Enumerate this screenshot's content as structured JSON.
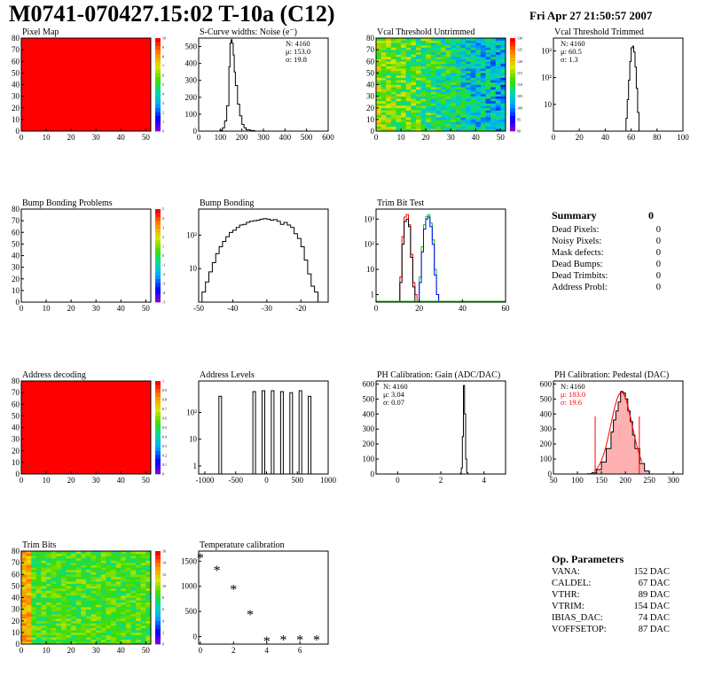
{
  "header": {
    "title": "M0741-070427.15:02 T-10a (C12)",
    "date": "Fri Apr 27 21:50:57 2007"
  },
  "colors": {
    "red_fill": "#ff0000",
    "line": "#000000",
    "trim_red": "#ff0000",
    "trim_green": "#00cc00",
    "trim_blue": "#0000ff",
    "pedestal_fill": "#ffb0b0",
    "pedestal_fit": "#ff0000"
  },
  "palette_name": "rainbow",
  "chart_data": [
    {
      "id": "pixel-map",
      "type": "heatmap",
      "title": "Pixel Map",
      "xlim": [
        0,
        52
      ],
      "ylim": [
        0,
        80
      ],
      "xticks": [
        "0",
        "10",
        "20",
        "30",
        "40",
        "50"
      ],
      "yticks": [
        "0",
        "10",
        "20",
        "30",
        "40",
        "50",
        "60",
        "70",
        "80"
      ],
      "fill": "uniform-max",
      "zticks": [
        "0",
        "1",
        "2",
        "3",
        "4",
        "5",
        "6",
        "7",
        "8",
        "9",
        "10"
      ]
    },
    {
      "id": "scurve",
      "type": "line",
      "title": "S-Curve widths: Noise (e⁻)",
      "xlim": [
        0,
        600
      ],
      "ylim": [
        0,
        550
      ],
      "xticks": [
        "0",
        "100",
        "200",
        "300",
        "400",
        "500",
        "600"
      ],
      "yticks": [
        "0",
        "100",
        "200",
        "300",
        "400",
        "500"
      ],
      "stats": [
        "N: 4160",
        "μ: 153.0",
        "σ: 19.8"
      ],
      "x": [
        90,
        100,
        110,
        120,
        130,
        140,
        145,
        150,
        155,
        160,
        165,
        170,
        180,
        190,
        200,
        210,
        220,
        240,
        260
      ],
      "y": [
        0,
        5,
        20,
        60,
        150,
        380,
        520,
        540,
        520,
        450,
        350,
        270,
        160,
        90,
        40,
        20,
        8,
        3,
        0
      ]
    },
    {
      "id": "vcal-untrimmed",
      "type": "heatmap",
      "title": "Vcal Threshold Untrimmed",
      "xlim": [
        0,
        52
      ],
      "ylim": [
        0,
        80
      ],
      "xticks": [
        "0",
        "10",
        "20",
        "30",
        "40",
        "50"
      ],
      "yticks": [
        "0",
        "10",
        "20",
        "30",
        "40",
        "50",
        "60",
        "70",
        "80"
      ],
      "fill": "noisy-gradient",
      "zticks": [
        "90",
        "95",
        "100",
        "105",
        "110",
        "115",
        "120",
        "125",
        "130"
      ]
    },
    {
      "id": "vcal-trimmed",
      "type": "line",
      "title": "Vcal Threshold Trimmed",
      "xlim": [
        0,
        100
      ],
      "ylog": true,
      "ylim": [
        1,
        3000
      ],
      "xticks": [
        "0",
        "20",
        "40",
        "60",
        "80",
        "100"
      ],
      "yticks": [
        "10",
        "10²",
        "10³"
      ],
      "stats": [
        "N: 4160",
        "μ: 60.5",
        "σ: 1.3"
      ],
      "x": [
        55,
        56,
        57,
        58,
        59,
        60,
        61,
        62,
        63,
        64,
        65,
        66
      ],
      "y": [
        1,
        3,
        15,
        80,
        400,
        1300,
        1500,
        900,
        250,
        40,
        5,
        1
      ]
    },
    {
      "id": "bump-problems",
      "type": "heatmap",
      "title": "Bump Bonding Problems",
      "xlim": [
        0,
        52
      ],
      "ylim": [
        0,
        80
      ],
      "xticks": [
        "0",
        "10",
        "20",
        "30",
        "40",
        "50"
      ],
      "yticks": [
        "0",
        "10",
        "20",
        "30",
        "40",
        "50",
        "60",
        "70",
        "80"
      ],
      "fill": "empty",
      "zticks": [
        "-5",
        "-4",
        "-3",
        "-2",
        "-1",
        "0",
        "1",
        "2",
        "3",
        "4",
        "5"
      ]
    },
    {
      "id": "bump-bonding",
      "type": "line",
      "title": "Bump Bonding",
      "xlim": [
        -50,
        -12
      ],
      "ylog": true,
      "ylim": [
        1,
        600
      ],
      "xticks": [
        "-50",
        "-40",
        "-30",
        "-20"
      ],
      "yticks": [
        "10",
        "10²"
      ],
      "x": [
        -50,
        -49,
        -48,
        -47,
        -46,
        -45,
        -44,
        -43,
        -42,
        -41,
        -40,
        -39,
        -38,
        -37,
        -36,
        -35,
        -34,
        -33,
        -32,
        -31,
        -30,
        -29,
        -28,
        -27,
        -26,
        -25,
        -24,
        -23,
        -22,
        -21,
        -20,
        -19,
        -18,
        -17,
        -16,
        -15
      ],
      "y": [
        1,
        2,
        4,
        8,
        15,
        28,
        45,
        65,
        90,
        120,
        140,
        170,
        200,
        210,
        240,
        260,
        270,
        280,
        300,
        310,
        300,
        280,
        290,
        260,
        210,
        240,
        200,
        170,
        110,
        80,
        45,
        18,
        7,
        3,
        2,
        1
      ]
    },
    {
      "id": "trim-bit-test",
      "type": "line",
      "title": "Trim Bit Test",
      "xlim": [
        0,
        60
      ],
      "ylog": true,
      "ylim": [
        0.5,
        2500
      ],
      "xticks": [
        "0",
        "20",
        "40",
        "60"
      ],
      "yticks": [
        "1",
        "10",
        "10²",
        "10³"
      ],
      "series": [
        {
          "color": "red",
          "x": [
            10,
            11,
            12,
            13,
            14,
            15,
            16,
            17,
            18,
            19
          ],
          "y": [
            0.5,
            5,
            200,
            1200,
            1500,
            600,
            40,
            3,
            1,
            0.5
          ]
        },
        {
          "color": "black",
          "x": [
            10,
            11,
            12,
            13,
            14,
            15,
            16,
            17,
            18,
            19
          ],
          "y": [
            0.5,
            3,
            100,
            800,
            1000,
            500,
            30,
            2,
            0.5,
            0.5
          ]
        },
        {
          "color": "green",
          "x": [
            19,
            20,
            21,
            22,
            23,
            24,
            25,
            26,
            27,
            28,
            29
          ],
          "y": [
            0.5,
            5,
            80,
            600,
            1300,
            1500,
            700,
            150,
            10,
            1,
            0.5
          ]
        },
        {
          "color": "blue",
          "x": [
            19,
            20,
            21,
            22,
            23,
            24,
            25,
            26,
            27,
            28,
            29
          ],
          "y": [
            0.5,
            3,
            50,
            400,
            1000,
            1200,
            500,
            100,
            6,
            1,
            0.5
          ]
        }
      ]
    },
    {
      "id": "address-decoding",
      "type": "heatmap",
      "title": "Address decoding",
      "xlim": [
        0,
        52
      ],
      "ylim": [
        0,
        80
      ],
      "xticks": [
        "0",
        "10",
        "20",
        "30",
        "40",
        "50"
      ],
      "yticks": [
        "0",
        "10",
        "20",
        "30",
        "40",
        "50",
        "60",
        "70",
        "80"
      ],
      "fill": "uniform-max",
      "zticks": [
        "0",
        "0.1",
        "0.2",
        "0.3",
        "0.4",
        "0.5",
        "0.6",
        "0.7",
        "0.8",
        "0.9",
        "1"
      ]
    },
    {
      "id": "address-levels",
      "type": "bar",
      "title": "Address Levels",
      "xlim": [
        -1100,
        1000
      ],
      "ylog": true,
      "ylim": [
        0.5,
        1500
      ],
      "xticks": [
        "-1000",
        "-500",
        "0",
        "500",
        "1000"
      ],
      "yticks": [
        "1",
        "10",
        "10²"
      ],
      "x": [
        -750,
        -200,
        -50,
        100,
        250,
        400,
        550,
        700
      ],
      "y": [
        400,
        600,
        650,
        650,
        600,
        550,
        650,
        400
      ]
    },
    {
      "id": "ph-gain",
      "type": "line",
      "title": "PH Calibration: Gain (ADC/DAC)",
      "xlim": [
        -1,
        5
      ],
      "ylim": [
        0,
        620
      ],
      "xticks": [
        "0",
        "2",
        "4"
      ],
      "yticks": [
        "0",
        "100",
        "200",
        "300",
        "400",
        "500",
        "600"
      ],
      "stats": [
        "N: 4160",
        "μ: 3.04",
        "σ: 0.07"
      ],
      "x": [
        2.85,
        2.9,
        2.95,
        3.0,
        3.05,
        3.1,
        3.15,
        3.2,
        3.25
      ],
      "y": [
        0,
        5,
        40,
        250,
        590,
        400,
        100,
        10,
        0
      ]
    },
    {
      "id": "ph-pedestal",
      "type": "area",
      "title": "PH Calibration: Pedestal (DAC)",
      "xlim": [
        50,
        320
      ],
      "ylim": [
        0,
        620
      ],
      "xticks": [
        "50",
        "100",
        "150",
        "200",
        "250",
        "300"
      ],
      "yticks": [
        "0",
        "100",
        "200",
        "300",
        "400",
        "500",
        "600"
      ],
      "stats": [
        "N: 4160",
        "μ: 183.0",
        "σ: 19.6"
      ],
      "x": [
        120,
        130,
        140,
        150,
        160,
        170,
        175,
        180,
        185,
        190,
        195,
        200,
        205,
        210,
        215,
        220,
        230,
        240,
        250
      ],
      "y": [
        2,
        8,
        30,
        80,
        170,
        280,
        360,
        420,
        480,
        550,
        540,
        500,
        420,
        350,
        260,
        170,
        70,
        20,
        3
      ],
      "fit_lines_x": [
        137,
        229
      ]
    },
    {
      "id": "trim-bits",
      "type": "heatmap",
      "title": "Trim Bits",
      "xlim": [
        0,
        52
      ],
      "ylim": [
        0,
        80
      ],
      "xticks": [
        "0",
        "10",
        "20",
        "30",
        "40",
        "50"
      ],
      "yticks": [
        "0",
        "10",
        "20",
        "30",
        "40",
        "50",
        "60",
        "70",
        "80"
      ],
      "fill": "noisy-green",
      "zticks": [
        "0",
        "2",
        "4",
        "6",
        "8",
        "10",
        "12",
        "14",
        "16"
      ]
    },
    {
      "id": "temperature",
      "type": "scatter",
      "title": "Temperature calibration",
      "xlim": [
        -0.1,
        7.7
      ],
      "ylim": [
        -150,
        1700
      ],
      "xticks": [
        "0",
        "2",
        "4",
        "6"
      ],
      "yticks": [
        "0",
        "500",
        "1000",
        "1500"
      ],
      "x": [
        0,
        1,
        2,
        3,
        4,
        5,
        6,
        7
      ],
      "y": [
        1580,
        1330,
        950,
        450,
        -80,
        -50,
        -50,
        -50
      ]
    }
  ],
  "summary": {
    "title": "Summary",
    "total": "0",
    "rows": [
      {
        "label": "Dead Pixels:",
        "value": "0"
      },
      {
        "label": "Noisy Pixels:",
        "value": "0"
      },
      {
        "label": "Mask defects:",
        "value": "0"
      },
      {
        "label": "Dead Bumps:",
        "value": "0"
      },
      {
        "label": "Dead Trimbits:",
        "value": "0"
      },
      {
        "label": "Address Probl:",
        "value": "0"
      }
    ]
  },
  "op_params": {
    "title": "Op. Parameters",
    "rows": [
      {
        "label": "VANA:",
        "value": "152 DAC"
      },
      {
        "label": "CALDEL:",
        "value": "67 DAC"
      },
      {
        "label": "VTHR:",
        "value": "89 DAC"
      },
      {
        "label": "VTRIM:",
        "value": "154 DAC"
      },
      {
        "label": "IBIAS_DAC:",
        "value": "74 DAC"
      },
      {
        "label": "VOFFSETOP:",
        "value": "87 DAC"
      }
    ]
  }
}
